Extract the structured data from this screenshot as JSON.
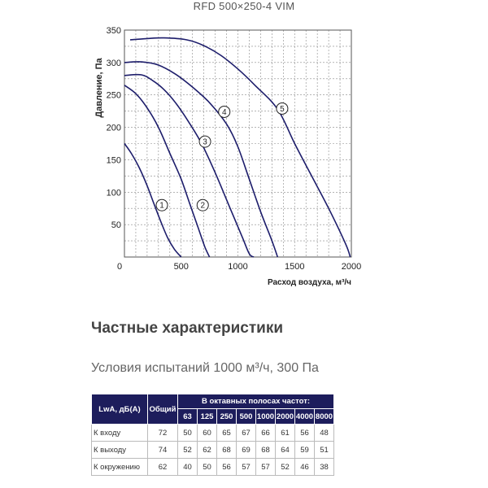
{
  "chart_data": {
    "type": "line",
    "title": "RFD 500×250-4 VIM",
    "xlabel": "Расход воздуха, м³/ч",
    "ylabel": "Давление, Па",
    "xlim": [
      0,
      2000
    ],
    "ylim": [
      0,
      350
    ],
    "xticks": [
      0,
      500,
      1000,
      1500,
      2000
    ],
    "yticks": [
      50,
      100,
      150,
      200,
      250,
      300,
      350
    ],
    "grid": true,
    "line_color": "#1d1d6b",
    "series": [
      {
        "name": "1",
        "points": [
          [
            0,
            175
          ],
          [
            60,
            160
          ],
          [
            130,
            138
          ],
          [
            200,
            110
          ],
          [
            260,
            82
          ],
          [
            320,
            55
          ],
          [
            380,
            30
          ],
          [
            440,
            12
          ],
          [
            500,
            0
          ]
        ]
      },
      {
        "name": "2",
        "points": [
          [
            0,
            265
          ],
          [
            100,
            252
          ],
          [
            200,
            230
          ],
          [
            300,
            200
          ],
          [
            400,
            160
          ],
          [
            500,
            120
          ],
          [
            580,
            80
          ],
          [
            650,
            45
          ],
          [
            710,
            15
          ],
          [
            750,
            0
          ]
        ]
      },
      {
        "name": "3",
        "points": [
          [
            0,
            280
          ],
          [
            150,
            281
          ],
          [
            250,
            272
          ],
          [
            350,
            258
          ],
          [
            450,
            238
          ],
          [
            560,
            210
          ],
          [
            680,
            175
          ],
          [
            800,
            130
          ],
          [
            920,
            80
          ],
          [
            1040,
            30
          ],
          [
            1100,
            5
          ],
          [
            1140,
            0
          ]
        ]
      },
      {
        "name": "4",
        "points": [
          [
            0,
            300
          ],
          [
            150,
            301
          ],
          [
            300,
            296
          ],
          [
            450,
            282
          ],
          [
            600,
            262
          ],
          [
            750,
            238
          ],
          [
            900,
            205
          ],
          [
            1000,
            170
          ],
          [
            1100,
            120
          ],
          [
            1200,
            70
          ],
          [
            1300,
            25
          ],
          [
            1350,
            0
          ]
        ]
      },
      {
        "name": "5",
        "points": [
          [
            50,
            335
          ],
          [
            200,
            337
          ],
          [
            350,
            338
          ],
          [
            550,
            335
          ],
          [
            700,
            326
          ],
          [
            850,
            311
          ],
          [
            1000,
            290
          ],
          [
            1150,
            265
          ],
          [
            1350,
            228
          ],
          [
            1500,
            175
          ],
          [
            1650,
            125
          ],
          [
            1800,
            75
          ],
          [
            1950,
            20
          ],
          [
            1990,
            0
          ]
        ]
      }
    ],
    "markers": [
      {
        "label": "1",
        "x": 330,
        "y": 80
      },
      {
        "label": "2",
        "x": 690,
        "y": 80
      },
      {
        "label": "3",
        "x": 710,
        "y": 178
      },
      {
        "label": "4",
        "x": 880,
        "y": 224
      },
      {
        "label": "5",
        "x": 1390,
        "y": 229
      }
    ]
  },
  "section_title": "Частные характеристики",
  "test_conditions": "Условия испытаний 1000 м³/ч, 300 Па",
  "table": {
    "col_label": "LwA, дБ(A)",
    "col_total": "Общий",
    "octave_header": "В октавных полосах частот:",
    "frequencies": [
      "63",
      "125",
      "250",
      "500",
      "1000",
      "2000",
      "4000",
      "8000"
    ],
    "rows": [
      {
        "label": "К входу",
        "total": "72",
        "values": [
          "50",
          "60",
          "65",
          "67",
          "66",
          "61",
          "56",
          "48"
        ]
      },
      {
        "label": "К выходу",
        "total": "74",
        "values": [
          "52",
          "62",
          "68",
          "69",
          "68",
          "64",
          "59",
          "51"
        ]
      },
      {
        "label": "К окружению",
        "total": "62",
        "values": [
          "40",
          "50",
          "56",
          "57",
          "57",
          "52",
          "46",
          "38"
        ]
      }
    ]
  }
}
